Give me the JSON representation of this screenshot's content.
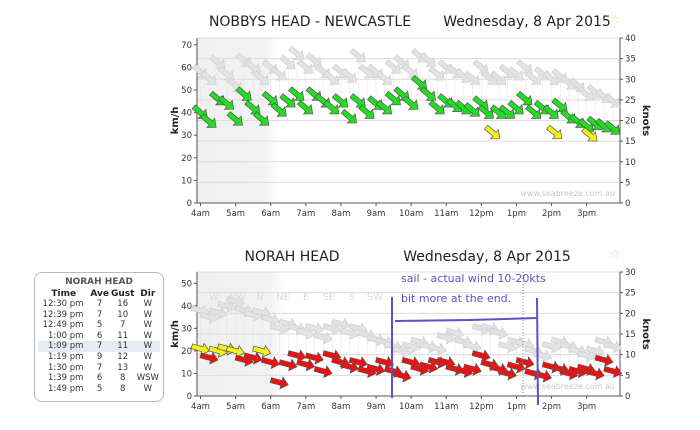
{
  "chart_data": [
    {
      "type": "scatter",
      "title": "NOBBYS HEAD - NEWCASTLE",
      "date": "Wednesday, 8 Apr 2015",
      "ylabel": "km/h",
      "y2label": "knots",
      "ylim": [
        0,
        73
      ],
      "y2lim": [
        0,
        40
      ],
      "yticks": [
        0,
        10,
        20,
        30,
        40,
        50,
        60,
        70
      ],
      "y2ticks": [
        0,
        5,
        10,
        15,
        20,
        25,
        30,
        35,
        40
      ],
      "xticks": [
        "4am",
        "5am",
        "6am",
        "7am",
        "8am",
        "9am",
        "10am",
        "11am",
        "12pm",
        "1pm",
        "2pm",
        "3pm"
      ],
      "xlim_hours": [
        3.9,
        15.95
      ],
      "arrow_direction": "NW",
      "watermark": "www.seabreeze.com.au",
      "direction_labels": [],
      "average": [
        [
          4,
          40,
          "g"
        ],
        [
          4.25,
          36,
          "g"
        ],
        [
          4.5,
          46,
          "g"
        ],
        [
          4.75,
          44,
          "g"
        ],
        [
          5,
          37,
          "g"
        ],
        [
          5.25,
          48,
          "g"
        ],
        [
          5.5,
          42,
          "g"
        ],
        [
          5.75,
          37,
          "g"
        ],
        [
          6,
          46,
          "g"
        ],
        [
          6.25,
          41,
          "g"
        ],
        [
          6.5,
          45,
          "g"
        ],
        [
          6.75,
          48,
          "g"
        ],
        [
          7,
          42,
          "g"
        ],
        [
          7.25,
          48,
          "g"
        ],
        [
          7.5,
          45,
          "g"
        ],
        [
          7.75,
          42,
          "g"
        ],
        [
          8,
          45,
          "g"
        ],
        [
          8.25,
          38,
          "g"
        ],
        [
          8.5,
          45,
          "g"
        ],
        [
          8.75,
          40,
          "g"
        ],
        [
          9,
          44,
          "g"
        ],
        [
          9.25,
          42,
          "g"
        ],
        [
          9.5,
          46,
          "g"
        ],
        [
          9.75,
          48,
          "g"
        ],
        [
          10,
          44,
          "g"
        ],
        [
          10.25,
          53,
          "g"
        ],
        [
          10.5,
          48,
          "g"
        ],
        [
          10.75,
          42,
          "g"
        ],
        [
          11,
          45,
          "g"
        ],
        [
          11.25,
          43,
          "g"
        ],
        [
          11.5,
          42,
          "g"
        ],
        [
          11.75,
          41,
          "g"
        ],
        [
          12,
          44,
          "g"
        ],
        [
          12.15,
          40,
          "g"
        ],
        [
          12.33,
          31,
          "y"
        ],
        [
          12.5,
          40,
          "g"
        ],
        [
          12.75,
          40,
          "g"
        ],
        [
          13,
          42,
          "g"
        ],
        [
          13.25,
          46,
          "g"
        ],
        [
          13.5,
          40,
          "g"
        ],
        [
          13.75,
          42,
          "g"
        ],
        [
          14,
          40,
          "g"
        ],
        [
          14.1,
          31,
          "y"
        ],
        [
          14.25,
          43,
          "g"
        ],
        [
          14.5,
          38,
          "g"
        ],
        [
          14.75,
          36,
          "g"
        ],
        [
          15,
          34,
          "g"
        ],
        [
          15.1,
          30,
          "y"
        ],
        [
          15.25,
          35,
          "g"
        ],
        [
          15.5,
          34,
          "g"
        ],
        [
          15.75,
          33,
          "g"
        ]
      ],
      "gust": [
        [
          4,
          58
        ],
        [
          4.25,
          55
        ],
        [
          4.5,
          62
        ],
        [
          4.75,
          57
        ],
        [
          5,
          52
        ],
        [
          5.25,
          63
        ],
        [
          5.5,
          60
        ],
        [
          5.75,
          55
        ],
        [
          6,
          60
        ],
        [
          6.25,
          57
        ],
        [
          6.5,
          62
        ],
        [
          6.75,
          66
        ],
        [
          7,
          60
        ],
        [
          7.25,
          63
        ],
        [
          7.5,
          58
        ],
        [
          7.75,
          55
        ],
        [
          8,
          58
        ],
        [
          8.25,
          56
        ],
        [
          8.5,
          65
        ],
        [
          8.75,
          58
        ],
        [
          9,
          58
        ],
        [
          9.25,
          55
        ],
        [
          9.5,
          60
        ],
        [
          9.75,
          62
        ],
        [
          10,
          58
        ],
        [
          10.25,
          65
        ],
        [
          10.5,
          63
        ],
        [
          10.75,
          57
        ],
        [
          11,
          60
        ],
        [
          11.25,
          58
        ],
        [
          11.5,
          56
        ],
        [
          11.75,
          55
        ],
        [
          12,
          60
        ],
        [
          12.25,
          55
        ],
        [
          12.5,
          55
        ],
        [
          12.75,
          58
        ],
        [
          13,
          57
        ],
        [
          13.25,
          60
        ],
        [
          13.5,
          55
        ],
        [
          13.75,
          57
        ],
        [
          14,
          55
        ],
        [
          14.25,
          56
        ],
        [
          14.5,
          53
        ],
        [
          14.75,
          52
        ],
        [
          15,
          48
        ],
        [
          15.25,
          49
        ],
        [
          15.5,
          47
        ],
        [
          15.75,
          45
        ]
      ]
    },
    {
      "type": "scatter",
      "title": "NORAH HEAD",
      "date": "Wednesday, 8 Apr 2015",
      "ylabel": "km/h",
      "y2label": "knots",
      "ylim": [
        0,
        55
      ],
      "y2lim": [
        0,
        30
      ],
      "yticks": [
        0,
        10,
        20,
        30,
        40,
        50
      ],
      "y2ticks": [
        0,
        5,
        10,
        15,
        20,
        25,
        30
      ],
      "xticks": [
        "4am",
        "5am",
        "6am",
        "7am",
        "8am",
        "9am",
        "10am",
        "11am",
        "12pm",
        "1pm",
        "2pm",
        "3pm"
      ],
      "xlim_hours": [
        3.9,
        15.95
      ],
      "arrow_direction": "W",
      "watermark": "www.seabreeze.com.au",
      "direction_labels": [
        "W",
        "NW",
        "N",
        "NE",
        "E",
        "SE",
        "S",
        "SW"
      ],
      "average": [
        [
          4,
          21,
          "y"
        ],
        [
          4.25,
          17,
          "r"
        ],
        [
          4.5,
          20,
          "y"
        ],
        [
          4.75,
          21,
          "y"
        ],
        [
          5,
          20,
          "y"
        ],
        [
          5.25,
          16,
          "r"
        ],
        [
          5.5,
          17,
          "r"
        ],
        [
          5.75,
          20,
          "y"
        ],
        [
          6,
          15,
          "r"
        ],
        [
          6.25,
          6,
          "r"
        ],
        [
          6.5,
          14,
          "r"
        ],
        [
          6.75,
          18,
          "r"
        ],
        [
          7,
          14,
          "r"
        ],
        [
          7.25,
          17,
          "r"
        ],
        [
          7.5,
          11,
          "r"
        ],
        [
          7.75,
          18,
          "r"
        ],
        [
          8,
          15,
          "r"
        ],
        [
          8.25,
          13,
          "r"
        ],
        [
          8.5,
          15,
          "r"
        ],
        [
          8.75,
          11,
          "r"
        ],
        [
          9,
          12,
          "r"
        ],
        [
          9.25,
          15,
          "r"
        ],
        [
          9.5,
          11,
          "r"
        ],
        [
          9.75,
          9,
          "r"
        ],
        [
          10,
          15,
          "r"
        ],
        [
          10.25,
          12,
          "r"
        ],
        [
          10.5,
          13,
          "r"
        ],
        [
          10.75,
          15,
          "r"
        ],
        [
          11,
          15,
          "r"
        ],
        [
          11.25,
          12,
          "r"
        ],
        [
          11.5,
          11,
          "r"
        ],
        [
          11.75,
          12,
          "r"
        ],
        [
          12,
          18,
          "r"
        ],
        [
          12.25,
          14,
          "r"
        ],
        [
          12.5,
          12,
          "r"
        ],
        [
          12.75,
          10,
          "r"
        ],
        [
          13,
          13,
          "r"
        ],
        [
          13.25,
          15,
          "r"
        ],
        [
          13.5,
          10,
          "r"
        ],
        [
          13.75,
          9,
          "r"
        ],
        [
          14,
          13,
          "r"
        ],
        [
          14.25,
          12,
          "r"
        ],
        [
          14.5,
          10,
          "r"
        ],
        [
          14.75,
          11,
          "r"
        ],
        [
          15,
          12,
          "r"
        ],
        [
          15.25,
          10,
          "r"
        ],
        [
          15.5,
          16,
          "r"
        ],
        [
          15.75,
          11,
          "r"
        ]
      ],
      "gust": [
        [
          4,
          38
        ],
        [
          4.25,
          35
        ],
        [
          4.5,
          37
        ],
        [
          4.75,
          40
        ],
        [
          5,
          42
        ],
        [
          5.25,
          38
        ],
        [
          5.5,
          36
        ],
        [
          5.75,
          37
        ],
        [
          6,
          34
        ],
        [
          6.25,
          30
        ],
        [
          6.5,
          32
        ],
        [
          6.75,
          30
        ],
        [
          7,
          28
        ],
        [
          7.25,
          30
        ],
        [
          7.5,
          26
        ],
        [
          7.75,
          30
        ],
        [
          8,
          32
        ],
        [
          8.25,
          28
        ],
        [
          8.5,
          30
        ],
        [
          8.75,
          27
        ],
        [
          9,
          25
        ],
        [
          9.25,
          24
        ],
        [
          9.5,
          22
        ],
        [
          9.75,
          20
        ],
        [
          10,
          22
        ],
        [
          10.25,
          24
        ],
        [
          10.5,
          22
        ],
        [
          10.75,
          21
        ],
        [
          11,
          26
        ],
        [
          11.25,
          28
        ],
        [
          11.5,
          24
        ],
        [
          11.75,
          22
        ],
        [
          12,
          30
        ],
        [
          12.25,
          30
        ],
        [
          12.5,
          28
        ],
        [
          12.75,
          22
        ],
        [
          13,
          24
        ],
        [
          13.25,
          23
        ],
        [
          13.5,
          20
        ],
        [
          13.75,
          18
        ],
        [
          14,
          22
        ],
        [
          14.25,
          24
        ],
        [
          14.5,
          22
        ],
        [
          14.75,
          20
        ],
        [
          15,
          18
        ],
        [
          15.25,
          20
        ],
        [
          15.5,
          24
        ],
        [
          15.75,
          22
        ]
      ],
      "annotation": {
        "line1": "sail - actual wind 10-20kts",
        "line2": "bit more at the end.",
        "color": "#5b52c9"
      }
    }
  ],
  "colors": {
    "g": "#22dd22",
    "y": "#f2f21a",
    "r": "#ee1111",
    "gust": "#e2e2e2"
  },
  "observations": {
    "station": "NORAH HEAD",
    "headers": [
      "Time",
      "Ave",
      "Gust",
      "Dir"
    ],
    "highlight_row": 4,
    "rows": [
      [
        "12:30 pm",
        "7",
        "16",
        "W"
      ],
      [
        "12:39 pm",
        "7",
        "10",
        "W"
      ],
      [
        "12:49 pm",
        "5",
        "7",
        "W"
      ],
      [
        "1:00 pm",
        "6",
        "11",
        "W"
      ],
      [
        "1:09 pm",
        "7",
        "11",
        "W"
      ],
      [
        "1:19 pm",
        "9",
        "12",
        "W"
      ],
      [
        "1:30 pm",
        "7",
        "13",
        "W"
      ],
      [
        "1:39 pm",
        "6",
        "8",
        "WSW"
      ],
      [
        "1:49 pm",
        "5",
        "8",
        "W"
      ]
    ]
  }
}
